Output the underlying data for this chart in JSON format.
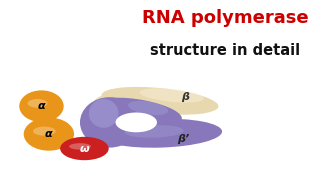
{
  "title_line1": "RNA polymerase",
  "title_line2": "structure in detail",
  "title_color": "#cc0000",
  "title2_color": "#111111",
  "bg_color": "#ffffff",
  "alpha_color": "#e8951a",
  "beta_cream_color": "#e8d8b0",
  "beta_blue_color": "#8877bb",
  "omega_color": "#cc2020",
  "label_alpha": "α",
  "label_beta": "β",
  "label_beta_prime": "β’",
  "label_omega": "ω"
}
